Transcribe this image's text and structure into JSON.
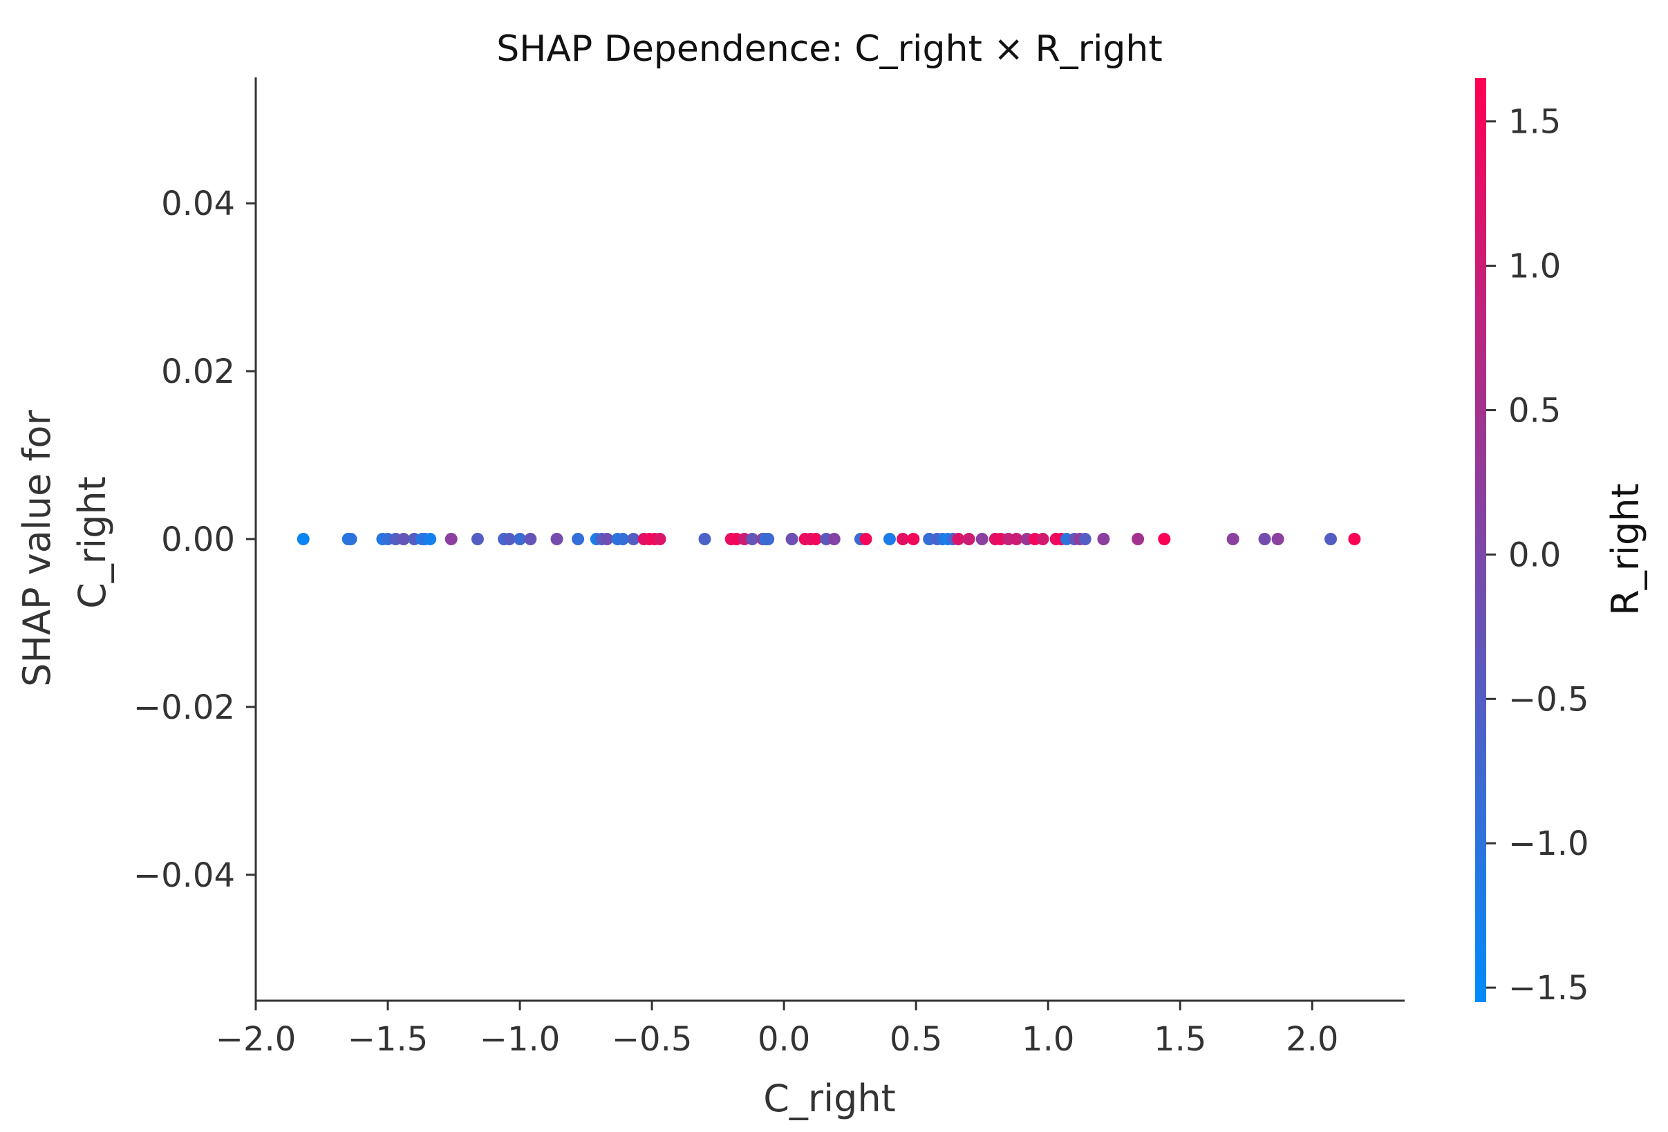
{
  "chart_data": {
    "type": "scatter",
    "title": "SHAP Dependence: C_right × R_right",
    "xlabel": "C_right",
    "ylabel": "SHAP value for C_right",
    "ylabel_lines": [
      "SHAP value for",
      "C_right"
    ],
    "xlim": [
      -2.0,
      2.35
    ],
    "ylim": [
      -0.055,
      0.055
    ],
    "x_ticks": [
      -2.0,
      -1.5,
      -1.0,
      -0.5,
      0.0,
      0.5,
      1.0,
      1.5,
      2.0
    ],
    "x_tick_labels": [
      "−2.0",
      "−1.5",
      "−1.0",
      "−0.5",
      "0.0",
      "0.5",
      "1.0",
      "1.5",
      "2.0"
    ],
    "y_ticks": [
      0.04,
      0.02,
      0.0,
      -0.02,
      -0.04
    ],
    "y_tick_labels": [
      "0.04",
      "0.02",
      "0.00",
      "−0.02",
      "−0.04"
    ],
    "grid": false,
    "colorbar": {
      "label": "R_right",
      "range": [
        -1.55,
        1.65
      ],
      "ticks": [
        1.5,
        1.0,
        0.5,
        0.0,
        -0.5,
        -1.0,
        -1.5
      ],
      "tick_labels": [
        "1.5",
        "1.0",
        "0.5",
        "0.0",
        "−0.5",
        "−1.0",
        "−1.5"
      ],
      "colors": [
        "#008bfb",
        "#ff0052"
      ]
    },
    "points": [
      {
        "x": -1.82,
        "y": 0.0,
        "c": -1.4
      },
      {
        "x": -1.65,
        "y": 0.0,
        "c": -1.1
      },
      {
        "x": -1.64,
        "y": 0.0,
        "c": -1.0
      },
      {
        "x": -1.52,
        "y": 0.0,
        "c": -1.1
      },
      {
        "x": -1.5,
        "y": 0.0,
        "c": -0.9
      },
      {
        "x": -1.47,
        "y": 0.0,
        "c": -0.5
      },
      {
        "x": -1.44,
        "y": 0.0,
        "c": -0.3
      },
      {
        "x": -1.4,
        "y": 0.0,
        "c": -0.5
      },
      {
        "x": -1.37,
        "y": 0.0,
        "c": -1.2
      },
      {
        "x": -1.36,
        "y": 0.0,
        "c": -1.0
      },
      {
        "x": -1.34,
        "y": 0.0,
        "c": -1.3
      },
      {
        "x": -1.26,
        "y": 0.0,
        "c": 0.2
      },
      {
        "x": -1.16,
        "y": 0.0,
        "c": -0.5
      },
      {
        "x": -1.06,
        "y": 0.0,
        "c": -0.7
      },
      {
        "x": -1.04,
        "y": 0.0,
        "c": -0.5
      },
      {
        "x": -1.0,
        "y": 0.0,
        "c": -0.8
      },
      {
        "x": -0.96,
        "y": 0.0,
        "c": -0.3
      },
      {
        "x": -0.86,
        "y": 0.0,
        "c": -0.1
      },
      {
        "x": -0.78,
        "y": 0.0,
        "c": -0.9
      },
      {
        "x": -0.71,
        "y": 0.0,
        "c": -1.2
      },
      {
        "x": -0.69,
        "y": 0.0,
        "c": -0.5
      },
      {
        "x": -0.67,
        "y": 0.0,
        "c": -0.2
      },
      {
        "x": -0.63,
        "y": 0.0,
        "c": -1.0
      },
      {
        "x": -0.61,
        "y": 0.0,
        "c": -0.9
      },
      {
        "x": -0.57,
        "y": 0.0,
        "c": -0.5
      },
      {
        "x": -0.53,
        "y": 0.0,
        "c": 1.3
      },
      {
        "x": -0.51,
        "y": 0.0,
        "c": 1.4
      },
      {
        "x": -0.49,
        "y": 0.0,
        "c": 1.5
      },
      {
        "x": -0.47,
        "y": 0.0,
        "c": 1.2
      },
      {
        "x": -0.3,
        "y": 0.0,
        "c": -0.6
      },
      {
        "x": -0.2,
        "y": 0.0,
        "c": 1.4
      },
      {
        "x": -0.18,
        "y": 0.0,
        "c": 1.5
      },
      {
        "x": -0.15,
        "y": 0.0,
        "c": 1.0
      },
      {
        "x": -0.12,
        "y": 0.0,
        "c": -0.3
      },
      {
        "x": -0.08,
        "y": 0.0,
        "c": 0.3
      },
      {
        "x": -0.07,
        "y": 0.0,
        "c": -1.0
      },
      {
        "x": -0.06,
        "y": 0.0,
        "c": -0.8
      },
      {
        "x": 0.03,
        "y": 0.0,
        "c": -0.2
      },
      {
        "x": 0.08,
        "y": 0.0,
        "c": 1.5
      },
      {
        "x": 0.1,
        "y": 0.0,
        "c": 1.3
      },
      {
        "x": 0.12,
        "y": 0.0,
        "c": 1.5
      },
      {
        "x": 0.16,
        "y": 0.0,
        "c": -0.4
      },
      {
        "x": 0.19,
        "y": 0.0,
        "c": 0.1
      },
      {
        "x": 0.29,
        "y": 0.0,
        "c": -0.8
      },
      {
        "x": 0.31,
        "y": 0.0,
        "c": 1.5
      },
      {
        "x": 0.4,
        "y": 0.0,
        "c": -1.2
      },
      {
        "x": 0.45,
        "y": 0.0,
        "c": 1.3
      },
      {
        "x": 0.49,
        "y": 0.0,
        "c": 1.5
      },
      {
        "x": 0.55,
        "y": 0.0,
        "c": 0.8
      },
      {
        "x": 0.55,
        "y": 0.0,
        "c": -0.9
      },
      {
        "x": 0.58,
        "y": 0.0,
        "c": -0.6
      },
      {
        "x": 0.6,
        "y": 0.0,
        "c": -1.0
      },
      {
        "x": 0.62,
        "y": 0.0,
        "c": -1.3
      },
      {
        "x": 0.64,
        "y": 0.0,
        "c": -0.7
      },
      {
        "x": 0.66,
        "y": 0.0,
        "c": 1.2
      },
      {
        "x": 0.7,
        "y": 0.0,
        "c": 1.0
      },
      {
        "x": 0.75,
        "y": 0.0,
        "c": 0.2
      },
      {
        "x": 0.8,
        "y": 0.0,
        "c": 1.3
      },
      {
        "x": 0.82,
        "y": 0.0,
        "c": 1.4
      },
      {
        "x": 0.85,
        "y": 0.0,
        "c": 0.9
      },
      {
        "x": 0.88,
        "y": 0.0,
        "c": 1.0
      },
      {
        "x": 0.92,
        "y": 0.0,
        "c": 0.4
      },
      {
        "x": 0.95,
        "y": 0.0,
        "c": 1.5
      },
      {
        "x": 0.98,
        "y": 0.0,
        "c": 1.1
      },
      {
        "x": 1.03,
        "y": 0.0,
        "c": 1.4
      },
      {
        "x": 1.05,
        "y": 0.0,
        "c": 1.5
      },
      {
        "x": 1.07,
        "y": 0.0,
        "c": -1.0
      },
      {
        "x": 1.1,
        "y": 0.0,
        "c": -0.4
      },
      {
        "x": 1.12,
        "y": 0.0,
        "c": 0.3
      },
      {
        "x": 1.14,
        "y": 0.0,
        "c": -0.5
      },
      {
        "x": 1.21,
        "y": 0.0,
        "c": 0.2
      },
      {
        "x": 1.34,
        "y": 0.0,
        "c": 0.5
      },
      {
        "x": 1.44,
        "y": 0.0,
        "c": 1.6
      },
      {
        "x": 1.7,
        "y": 0.0,
        "c": 0.2
      },
      {
        "x": 1.82,
        "y": 0.0,
        "c": -0.1
      },
      {
        "x": 1.87,
        "y": 0.0,
        "c": 0.2
      },
      {
        "x": 2.07,
        "y": 0.0,
        "c": -0.5
      },
      {
        "x": 2.16,
        "y": 0.0,
        "c": 1.6
      }
    ]
  }
}
